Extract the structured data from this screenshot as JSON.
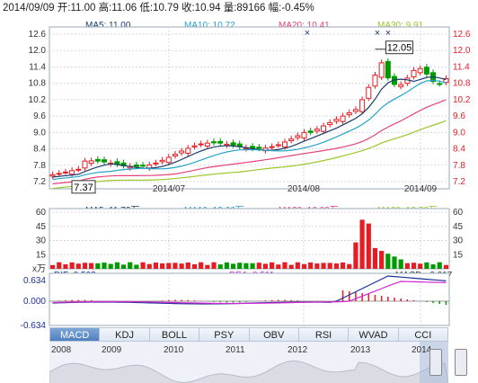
{
  "header": {
    "text": "2014/09/09 开:11.00  高:11.06  低:10.79  收:10.94  量:89166  幅:-0.45%"
  },
  "colors": {
    "up": "#e51c23",
    "down": "#009900",
    "ma5": "#1a3b68",
    "ma10": "#27a3c8",
    "ma20": "#e8417c",
    "ma30": "#9ac82a",
    "grid": "#d4dae3",
    "dif": "#1b2f99",
    "dea": "#d226d2"
  },
  "price_panel": {
    "legend": {
      "ma5": "MA5: 11.00",
      "ma10": "MA10: 10.72",
      "ma20": "MA20: 10.41",
      "ma30": "MA30: 9.91"
    },
    "y_ticks_left": [
      "12.6",
      "12.0",
      "11.4",
      "10.8",
      "10.2",
      "9.6",
      "9.0",
      "8.4",
      "7.8",
      "7.2"
    ],
    "y_ticks_right": [
      "12.6",
      "12.0",
      "11.4",
      "10.8",
      "10.2",
      "9.6",
      "9.0",
      "8.4",
      "7.8",
      "7.2"
    ],
    "x_ticks": [
      "2014/07",
      "2014/08",
      "2014/09"
    ],
    "high_label": "12.05",
    "low_label": "7.37",
    "marker_icon": "bookmark-x-icon"
  },
  "volume_panel": {
    "legend": {
      "ma5": "MA5: 11.73万",
      "ma10": "MA10: 12.66万",
      "ma20": "MA20: 16.82万",
      "ma30": "MA30: 13.76万"
    },
    "y_ticks_left": [
      "60",
      "45",
      "30",
      "15",
      "x万"
    ],
    "y_ticks_right": [
      "60",
      "45",
      "30",
      "15"
    ]
  },
  "macd_panel": {
    "legend": {
      "dif": "DIF: 0.502",
      "dea": "DEA: 0.511",
      "macd": "MACD: -0.017"
    },
    "y_ticks": [
      "0.634",
      "0.000",
      "-0.634"
    ]
  },
  "indicator_tabs": [
    "MACD",
    "KDJ",
    "BOLL",
    "PSY",
    "OBV",
    "RSI",
    "WVAD",
    "CCI"
  ],
  "active_tab": "MACD",
  "navigator": {
    "years": [
      "2008",
      "2009",
      "2010",
      "2011",
      "2012",
      "2013",
      "2014"
    ]
  }
}
